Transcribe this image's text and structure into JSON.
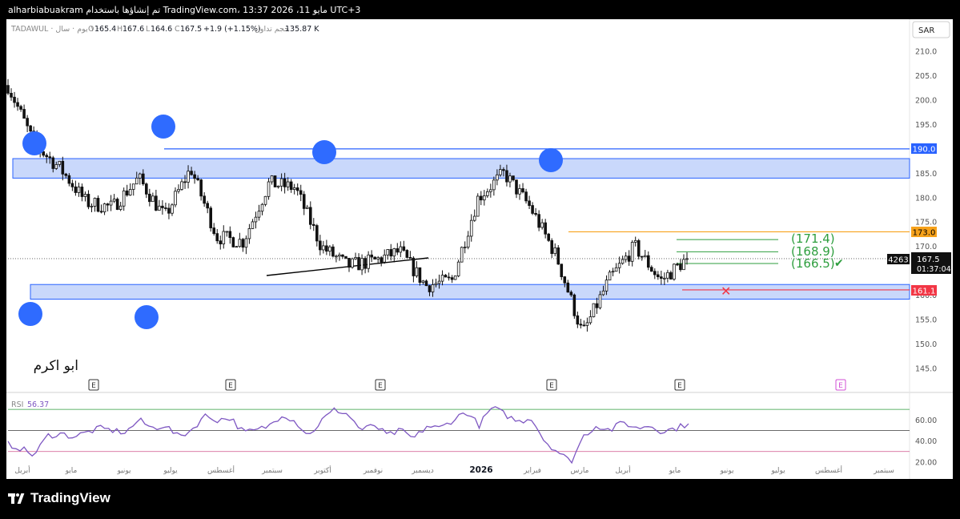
{
  "header": {
    "user_line": "alharbiabuakram تم إنشاؤها باستخدام TradingView.com، 13:37 2026 ،11 مايو UTC+3"
  },
  "legend": {
    "symbol": "TADAWUL · ١ يوم · سال ·",
    "o_label": "O",
    "o": "165.4",
    "h_label": "H",
    "h": "167.6",
    "l_label": "L",
    "l": "164.6",
    "c_label": "C",
    "c": "167.5",
    "change": "+1.9 (+1.15%)",
    "volume_label": "حجم تداول",
    "volume": "135.87 K"
  },
  "currency_button": "SAR",
  "watermark_text": "ابو اكرم",
  "earnings_marker": "E",
  "colors": {
    "zone_fill": "#c9d8fb",
    "zone_border": "#2962ff",
    "circle": "#2f6bff",
    "orange_line": "#f7a21b",
    "green_line": "#2e9e3e",
    "red_line": "#f23645",
    "rsi_line": "#7e57c2"
  },
  "labels": {
    "price_190": "190.0",
    "price_173": "173.0",
    "price_161": "161.1",
    "target_1": "(171.4)",
    "target_2": "(168.9)",
    "target_3": "(166.5)",
    "checkmark": "✔",
    "stop_mark": "✕",
    "last_price": "167.5",
    "countdown": "01:37:04",
    "volume_tag": "4263"
  },
  "rsi": {
    "label": "RSI",
    "value": "56.37",
    "levels": [
      "60.00",
      "40.00",
      "20.00"
    ]
  },
  "x_labels": [
    "أبريل",
    "مايو",
    "يونيو",
    "يوليو",
    "أغسطس",
    "سبتمبر",
    "أكتوبر",
    "نوفمبر",
    "ديسمبر",
    "2026",
    "فبراير",
    "مارس",
    "أبريل",
    "مايو",
    "يونيو",
    "يوليو",
    "أغسطس",
    "سبتمبر"
  ],
  "footer": {
    "brand": "TradingView"
  },
  "chart_data": {
    "type": "candlestick",
    "y_ticks": [
      "145.0",
      "150.0",
      "155.0",
      "160.0",
      "165.0",
      "170.0",
      "175.0",
      "180.0",
      "185.0",
      "190.0",
      "195.0",
      "200.0",
      "205.0",
      "210.0"
    ],
    "ylim": [
      142,
      213
    ],
    "x": [
      "2025-04-01",
      "2025-05-01",
      "2025-06-01",
      "2025-07-01",
      "2025-08-01",
      "2025-09-01",
      "2025-10-01",
      "2025-11-01",
      "2025-12-01",
      "2026-01-01",
      "2026-02-01",
      "2026-03-01",
      "2026-04-01",
      "2026-05-01"
    ],
    "close_path": [
      203,
      191,
      186,
      179,
      178,
      184,
      176,
      186,
      172,
      171,
      183,
      182,
      170,
      166,
      167,
      169,
      162,
      163,
      180,
      185,
      178,
      168,
      152,
      163,
      170,
      163,
      167.5
    ],
    "last": {
      "open": 165.4,
      "high": 167.6,
      "low": 164.6,
      "close": 167.5,
      "change": 1.9,
      "change_pct": 1.15,
      "volume": "135.87K"
    },
    "zones": [
      {
        "name": "resistance",
        "low": 184,
        "high": 188
      },
      {
        "name": "support",
        "low": 159.2,
        "high": 162.2
      }
    ],
    "levels": {
      "resistance_line": 190.0,
      "orange": 173.0,
      "stop": 161.1,
      "targets": [
        171.4,
        168.9,
        166.5
      ]
    },
    "rsi": {
      "value": 56.37,
      "ylim": [
        10,
        80
      ],
      "levels": [
        70,
        50,
        30
      ]
    }
  }
}
